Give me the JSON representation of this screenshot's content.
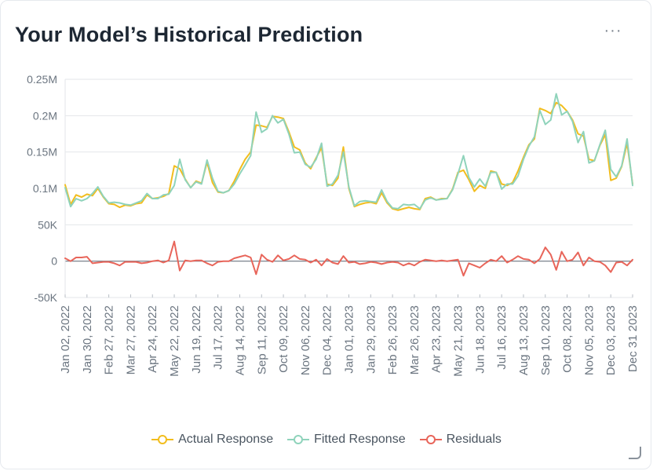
{
  "title": "Your Model’s Historical Prediction",
  "menu_label": "···",
  "colors": {
    "actual": "#f2bd1d",
    "fitted": "#8fd3bb",
    "residuals": "#e8655a",
    "grid": "#e3e6ea",
    "axis_text": "#6b7580"
  },
  "chart_data": {
    "type": "line",
    "title": "Your Model’s Historical Prediction",
    "xlabel": "",
    "ylabel": "",
    "ylim": [
      -50000,
      250000
    ],
    "yticks": [
      -50000,
      0,
      50000,
      100000,
      150000,
      200000,
      250000
    ],
    "ytick_labels": [
      "-50K",
      "0",
      "50K",
      "0.1M",
      "0.15M",
      "0.2M",
      "0.25M"
    ],
    "x_tick_labels": [
      "Jan 02, 2022",
      "Jan 30, 2022",
      "Feb 27, 2022",
      "Mar 27, 2022",
      "Apr 24, 2022",
      "May 22, 2022",
      "Jun 19, 2022",
      "Jul 17, 2022",
      "Aug 14, 2022",
      "Sep 11, 2022",
      "Oct 09, 2022",
      "Nov 06, 2022",
      "Dec 04, 2022",
      "Jan 01, 2023",
      "Jan 29, 2023",
      "Feb 26, 2023",
      "Mar 26, 2023",
      "Apr 23, 2023",
      "May 21, 2023",
      "Jun 18, 2023",
      "Jul 16, 2023",
      "Aug 13, 2023",
      "Sep 10, 2023",
      "Oct 08, 2023",
      "Nov 05, 2023",
      "Dec 03, 2023",
      "Dec 31 2023"
    ],
    "x_tick_every": 4,
    "legend_position": "bottom",
    "grid": true,
    "series": [
      {
        "name": "Actual Response",
        "values": [
          105000,
          78000,
          91000,
          88000,
          92000,
          90000,
          100000,
          88000,
          79000,
          78000,
          74000,
          77000,
          76000,
          79000,
          80000,
          91000,
          86000,
          87000,
          89000,
          93000,
          131000,
          127000,
          113000,
          101000,
          110000,
          107000,
          136000,
          108000,
          95000,
          94000,
          97000,
          110000,
          126000,
          140000,
          150000,
          187000,
          186000,
          184000,
          199000,
          198000,
          196000,
          178000,
          157000,
          153000,
          135000,
          127000,
          142000,
          156000,
          106000,
          104000,
          114000,
          157000,
          100000,
          75000,
          78000,
          80000,
          81000,
          79000,
          94000,
          80000,
          72000,
          70000,
          72000,
          74000,
          72000,
          71000,
          86000,
          88000,
          84000,
          86000,
          86000,
          99000,
          122000,
          125000,
          112000,
          96000,
          104000,
          100000,
          124000,
          122000,
          106000,
          104000,
          108000,
          124000,
          143000,
          160000,
          168000,
          210000,
          207000,
          203000,
          218000,
          214000,
          206000,
          194000,
          175000,
          172000,
          140000,
          138000,
          159000,
          174000,
          111000,
          114000,
          130000,
          162000,
          106000
        ]
      },
      {
        "name": "Fitted Response",
        "values": [
          101000,
          75000,
          86000,
          83000,
          86000,
          93000,
          102000,
          89000,
          80000,
          81000,
          80000,
          78000,
          77000,
          80000,
          83000,
          93000,
          86000,
          86000,
          91000,
          92000,
          104000,
          140000,
          112000,
          101000,
          109000,
          106000,
          139000,
          114000,
          96000,
          94000,
          97000,
          106000,
          120000,
          132000,
          145000,
          205000,
          177000,
          182000,
          200000,
          190000,
          195000,
          175000,
          149000,
          150000,
          133000,
          129000,
          140000,
          162000,
          103000,
          106000,
          118000,
          150000,
          102000,
          76000,
          82000,
          83000,
          82000,
          81000,
          98000,
          82000,
          73000,
          72000,
          78000,
          77000,
          78000,
          72000,
          84000,
          87000,
          84000,
          85000,
          86000,
          98000,
          120000,
          145000,
          115000,
          102000,
          113000,
          103000,
          122000,
          122000,
          99000,
          106000,
          106000,
          117000,
          140000,
          158000,
          171000,
          207000,
          188000,
          194000,
          230000,
          201000,
          206000,
          192000,
          163000,
          178000,
          135000,
          138000,
          160000,
          180000,
          126000,
          116000,
          131000,
          168000,
          104000
        ]
      },
      {
        "name": "Residuals",
        "values": [
          4000,
          0,
          5000,
          5000,
          6000,
          -3000,
          -2000,
          -1000,
          -1000,
          -3000,
          -6000,
          -1000,
          -1000,
          -1000,
          -3000,
          -2000,
          0,
          1000,
          -2000,
          1000,
          27000,
          -13000,
          1000,
          0,
          1000,
          1000,
          -3000,
          -6000,
          -1000,
          0,
          0,
          4000,
          6000,
          8000,
          5000,
          -18000,
          9000,
          2000,
          -1000,
          8000,
          1000,
          3000,
          8000,
          3000,
          2000,
          -2000,
          2000,
          -6000,
          3000,
          -2000,
          -4000,
          7000,
          -2000,
          -1000,
          -4000,
          -3000,
          -1000,
          -2000,
          -4000,
          -2000,
          -1000,
          -2000,
          -6000,
          -3000,
          -6000,
          -1000,
          2000,
          1000,
          0,
          1000,
          0,
          1000,
          2000,
          -20000,
          -3000,
          -6000,
          -9000,
          -3000,
          2000,
          0,
          7000,
          -2000,
          2000,
          7000,
          3000,
          2000,
          -3000,
          3000,
          19000,
          9000,
          -12000,
          13000,
          0,
          2000,
          12000,
          -6000,
          5000,
          0,
          -1000,
          -6000,
          -15000,
          -2000,
          -1000,
          -6000,
          2000
        ]
      }
    ]
  }
}
